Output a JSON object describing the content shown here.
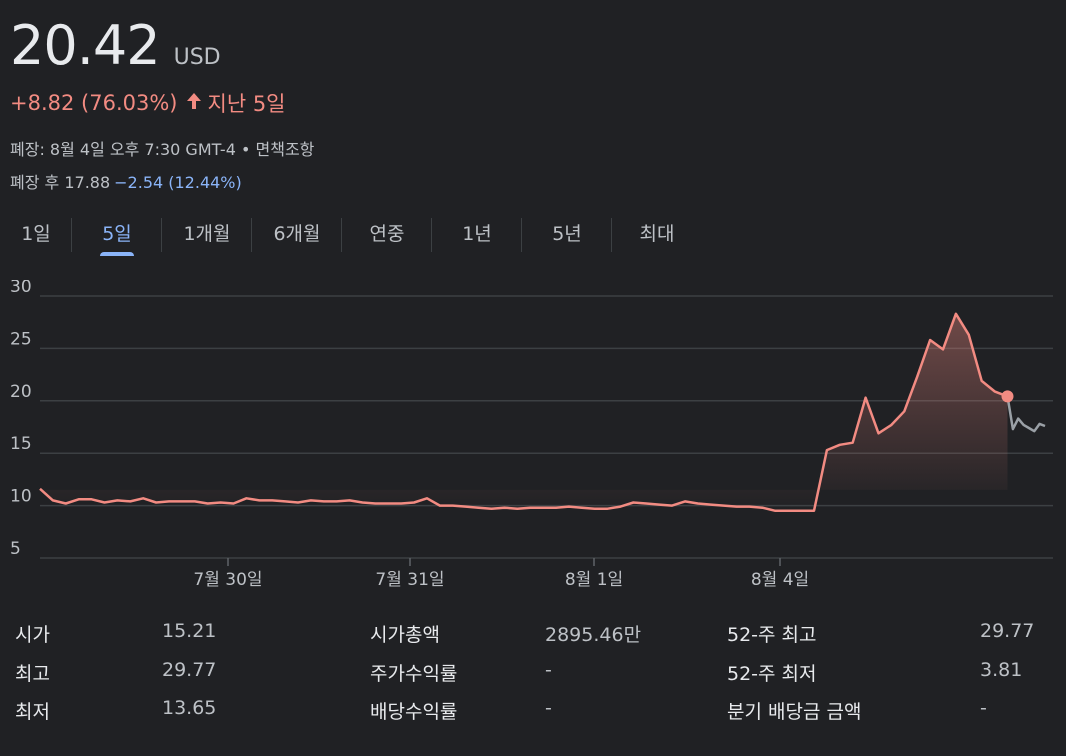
{
  "header": {
    "price": "20.42",
    "currency": "USD",
    "change": "+8.82 (76.03%)",
    "period": "지난 5일",
    "market_status": "폐장: 8월 4일 오후 7:30 GMT-4 • 면책조항",
    "after_hours_label": "폐장 후 17.88",
    "after_hours_change": "−2.54 (12.44%)"
  },
  "tabs": [
    "1일",
    "5일",
    "1개월",
    "6개월",
    "연중",
    "1년",
    "5년",
    "최대"
  ],
  "active_tab": 1,
  "colors": {
    "up": "#f28b82",
    "after_hours_line": "#9aa0a6",
    "accent": "#8ab4f8",
    "background": "#202124"
  },
  "chart_data": {
    "type": "line",
    "x_tick_labels": [
      "7월 30일",
      "7월 31일",
      "8월 1일",
      "8월 4일"
    ],
    "y_ticks": [
      30,
      25,
      20,
      15,
      10,
      5
    ],
    "ylim": [
      5,
      30
    ],
    "grid": true,
    "series": [
      {
        "values": [
          11.6,
          10.5,
          10.2,
          10.6,
          10.6,
          10.3,
          10.5,
          10.4,
          10.7,
          10.3,
          10.4,
          10.4,
          10.4,
          10.2,
          10.3,
          10.2,
          10.7,
          10.5,
          10.5,
          10.4,
          10.3,
          10.5,
          10.4,
          10.4,
          10.5,
          10.3,
          10.2,
          10.2,
          10.2,
          10.3,
          10.7,
          10.0,
          10.0,
          9.9,
          9.8,
          9.7,
          9.8,
          9.7,
          9.8,
          9.8,
          9.8,
          9.9,
          9.8,
          9.7,
          9.7,
          9.9,
          10.3,
          10.2,
          10.1,
          10.0,
          10.4,
          10.2,
          10.1,
          10.0,
          9.9,
          9.9,
          9.8,
          9.5,
          9.5,
          9.5,
          9.5,
          15.3,
          15.8,
          16.0,
          20.3,
          16.9,
          17.7,
          19.0,
          22.3,
          25.8,
          24.9,
          28.3,
          26.3,
          21.9,
          20.9,
          20.42
        ],
        "color": "#f28b82"
      },
      {
        "values": [
          20.42,
          17.3,
          18.3,
          17.7,
          17.4,
          17.1,
          17.8,
          17.6
        ],
        "color": "#9aa0a6"
      }
    ]
  },
  "stats": [
    [
      {
        "label": "시가",
        "value": "15.21"
      },
      {
        "label": "시가총액",
        "value": "2895.46만"
      },
      {
        "label": "52-주 최고",
        "value": "29.77"
      }
    ],
    [
      {
        "label": "최고",
        "value": "29.77"
      },
      {
        "label": "주가수익률",
        "value": "-"
      },
      {
        "label": "52-주 최저",
        "value": "3.81"
      }
    ],
    [
      {
        "label": "최저",
        "value": "13.65"
      },
      {
        "label": "배당수익률",
        "value": "-"
      },
      {
        "label": "분기 배당금 금액",
        "value": "-"
      }
    ]
  ]
}
